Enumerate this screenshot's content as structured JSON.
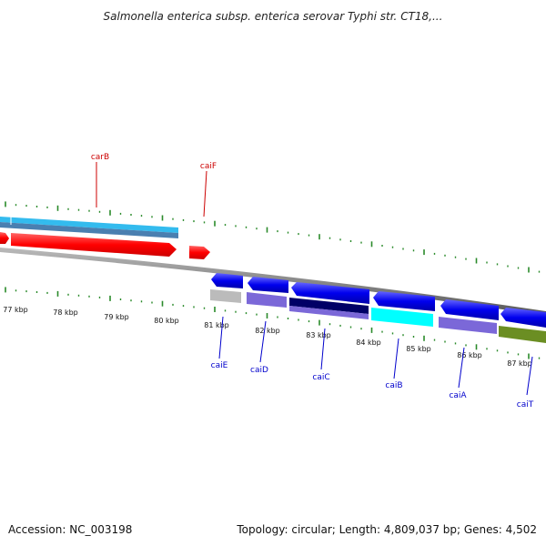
{
  "title": "Salmonella enterica subsp. enterica serovar Typhi str. CT18,...",
  "footer": {
    "accession": "Accession: NC_003198",
    "summary": "Topology: circular; Length: 4,809,037 bp; Genes: 4,502"
  },
  "scale": {
    "labels": [
      "77 kbp",
      "78 kbp",
      "79 kbp",
      "80 kbp",
      "81 kbp",
      "82 kbp",
      "83 kbp",
      "84 kbp",
      "85 kbp",
      "86 kbp",
      "87 kbp"
    ]
  },
  "genes_forward": [
    {
      "name": "carB",
      "color": "#cc0000"
    },
    {
      "name": "caiF",
      "color": "#cc0000"
    }
  ],
  "genes_reverse": [
    {
      "name": "caiE",
      "color": "#0000cc"
    },
    {
      "name": "caiD",
      "color": "#0000cc"
    },
    {
      "name": "caiC",
      "color": "#0000cc"
    },
    {
      "name": "caiB",
      "color": "#0000cc"
    },
    {
      "name": "caiA",
      "color": "#0000cc"
    },
    {
      "name": "caiT",
      "color": "#0000cc"
    }
  ],
  "colors": {
    "forward_gene": "#ff0000",
    "reverse_gene": "#0000ee",
    "cds_light_blue": "#33bbee",
    "cds_steel_blue": "#4a7fb0",
    "backbone": "#888888",
    "tick_green": "#2a8a2a",
    "label_red": "#cc0000",
    "label_blue": "#0000cc",
    "cyan": "#00ffff",
    "slate": "#7b68d8",
    "navy": "#000066",
    "olive": "#6b8e23",
    "gray": "#bbbbbb"
  }
}
